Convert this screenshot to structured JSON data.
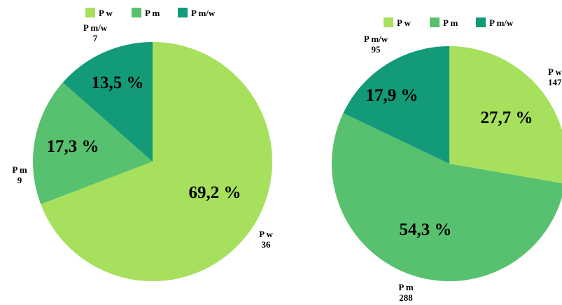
{
  "colors": {
    "P w": "#a6e05c",
    "P m": "#57c16f",
    "P m/w": "#139a79"
  },
  "chart_data": [
    {
      "type": "pie",
      "legend": [
        "P w",
        "P m",
        "P m/w"
      ],
      "legend_position": "top",
      "slices": [
        {
          "label": "P w",
          "count": "36",
          "percent": "69,2 %",
          "value": 69.2
        },
        {
          "label": "P m",
          "count": "9",
          "percent": "17,3 %",
          "value": 17.3
        },
        {
          "label": "P m/w",
          "count": "7",
          "percent": "13,5 %",
          "value": 13.5
        }
      ]
    },
    {
      "type": "pie",
      "legend": [
        "P w",
        "P m",
        "P m/w"
      ],
      "legend_position": "top",
      "slices": [
        {
          "label": "P w",
          "count": "147",
          "percent": "27,7 %",
          "value": 27.7
        },
        {
          "label": "P m",
          "count": "288",
          "percent": "54,3 %",
          "value": 54.3
        },
        {
          "label": "P m/w",
          "count": "95",
          "percent": "17,9 %",
          "value": 17.9
        }
      ]
    }
  ]
}
